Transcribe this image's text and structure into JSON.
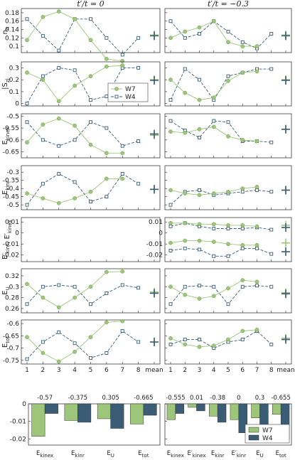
{
  "colors": {
    "W7": "#9dc67a",
    "W4": "#3a5d75",
    "W7_edge": "#6f9a4d",
    "W4_edge": "#2c4a60"
  },
  "chart_data": {
    "type": "line",
    "column_titles": [
      "t′/t = 0",
      "t′/t = −0.3"
    ],
    "x_ticks": [
      "1",
      "2",
      "3",
      "4",
      "5",
      "6",
      "7",
      "8",
      "mean"
    ],
    "legend": [
      "W7",
      "W4"
    ],
    "panels": [
      {
        "ylabel": "n_h",
        "yticks": [
          0.1,
          0.12,
          0.14,
          0.16,
          0.18
        ],
        "ylim": [
          0.085,
          0.19
        ],
        "left": {
          "W7": [
            0.115,
            0.17,
            0.183,
            0.165,
            0.115,
            0.07,
            0.065
          ],
          "W4": [
            0.165,
            0.125,
            0.09,
            0.165,
            0.165,
            0.12,
            0.08,
            0.12
          ],
          "mean": {
            "W7": 0.127,
            "W4": 0.125
          }
        },
        "right": {
          "W7": [
            0.12,
            0.135,
            0.145,
            0.16,
            0.11,
            0.1,
            0.1
          ],
          "W4": [
            0.16,
            0.12,
            0.13,
            0.16,
            0.135,
            0.11,
            0.095,
            0.13
          ],
          "mean": {
            "W7": 0.127,
            "W4": 0.125
          }
        }
      },
      {
        "ylabel": "|S_z|",
        "yticks": [
          0,
          0.1,
          0.2,
          0.3
        ],
        "ylim": [
          -0.02,
          0.35
        ],
        "legend_in_panel": true,
        "left": {
          "W7": [
            0.26,
            0.2,
            0.02,
            0.15,
            0.23,
            0.31,
            0.32
          ],
          "W4": [
            0.0,
            0.23,
            0.3,
            0.28,
            0.03,
            0.06,
            0.3,
            0.3
          ],
          "mean": {
            "W7": 0.2,
            "W4": 0.195
          }
        },
        "right": {
          "W7": [
            0.2,
            0.09,
            0.03,
            0.05,
            0.19,
            0.26,
            0.27
          ],
          "W4": [
            0.03,
            0.29,
            0.2,
            0.03,
            0.23,
            0.26,
            0.29,
            0.29
          ],
          "mean": {
            "W7": 0.2,
            "W4": 0.195
          }
        }
      },
      {
        "ylabel": "E_kinex",
        "yticks": [
          -0.65,
          -0.6,
          -0.55,
          -0.5
        ],
        "ylim": [
          -0.675,
          -0.49
        ],
        "left": {
          "W7": [
            -0.61,
            -0.535,
            -0.51,
            -0.54,
            -0.62,
            -0.655,
            -0.655
          ],
          "W4": [
            -0.525,
            -0.6,
            -0.625,
            -0.6,
            -0.525,
            -0.55,
            -0.625,
            -0.605
          ],
          "mean": {
            "W7": -0.58,
            "W4": -0.575
          }
        },
        "right": {
          "W7": [
            -0.565,
            -0.57,
            -0.555,
            -0.545,
            -0.585,
            -0.6,
            -0.605
          ],
          "W4": [
            -0.52,
            -0.56,
            -0.59,
            -0.52,
            -0.525,
            -0.605,
            -0.605,
            -0.61
          ],
          "mean": {
            "W7": -0.555,
            "W4": -0.555
          }
        }
      },
      {
        "ylabel": "E_kinr",
        "yticks": [
          -0.5,
          -0.45,
          -0.4,
          -0.35,
          -0.3
        ],
        "ylim": [
          -0.53,
          -0.26
        ],
        "left": {
          "W7": [
            -0.43,
            -0.46,
            -0.49,
            -0.46,
            -0.42,
            -0.34,
            -0.34
          ],
          "W4": [
            -0.5,
            -0.37,
            -0.31,
            -0.36,
            -0.48,
            -0.45,
            -0.31,
            -0.37
          ],
          "mean": {
            "W7": -0.405,
            "W4": -0.405
          }
        },
        "right": {
          "W7": [
            -0.41,
            -0.43,
            -0.44,
            -0.43,
            -0.42,
            -0.4,
            -0.39
          ],
          "W4": [
            -0.5,
            -0.42,
            -0.41,
            -0.44,
            -0.43,
            -0.42,
            -0.41,
            -0.42
          ],
          "mean": {
            "W7": -0.41,
            "W4": -0.41
          }
        }
      },
      {
        "ylabel": "E′_kinr, E′_kinex",
        "yticks": [
          -0.02,
          -0.01,
          0,
          0.01
        ],
        "ylim": [
          -0.026,
          0.014
        ],
        "left": null,
        "right": {
          "W7": [
            0.009,
            0.009,
            0.008,
            0.008,
            0.007,
            0.007,
            0.006
          ],
          "W7b": [
            -0.009,
            -0.007,
            -0.007,
            -0.008,
            -0.01,
            -0.011,
            -0.011
          ],
          "W4": [
            0.006,
            0.009,
            0.006,
            0.004,
            0.004,
            0.004,
            0.005,
            0.003
          ],
          "W4b": [
            -0.016,
            -0.014,
            -0.015,
            -0.021,
            -0.021,
            -0.014,
            -0.014,
            -0.019
          ],
          "mean": {
            "W7": 0.007,
            "W4": 0.005,
            "W7b": -0.009,
            "W4b": -0.017
          }
        }
      },
      {
        "ylabel": "E_U",
        "yticks": [
          0.26,
          0.28,
          0.3,
          0.32
        ],
        "ylim": [
          0.252,
          0.333
        ],
        "left": {
          "W7": [
            0.305,
            0.28,
            0.262,
            0.28,
            0.3,
            0.327,
            0.328
          ],
          "W4": [
            0.268,
            0.3,
            0.303,
            0.3,
            0.268,
            0.288,
            0.303,
            0.298
          ],
          "mean": {
            "W7": 0.29,
            "W4": 0.288
          }
        },
        "right": {
          "W7": [
            0.3,
            0.285,
            0.278,
            0.283,
            0.297,
            0.312,
            0.309
          ],
          "W4": [
            0.268,
            0.3,
            0.302,
            0.3,
            0.268,
            0.3,
            0.302,
            0.3
          ],
          "mean": {
            "W7": 0.289,
            "W4": 0.287
          }
        }
      },
      {
        "ylabel": "E_tot",
        "yticks": [
          -0.75,
          -0.7,
          -0.65,
          -0.6
        ],
        "ylim": [
          -0.765,
          -0.585
        ],
        "left": {
          "W7": [
            -0.655,
            -0.72,
            -0.755,
            -0.715,
            -0.655,
            -0.595,
            -0.59
          ],
          "W4": [
            -0.745,
            -0.675,
            -0.635,
            -0.68,
            -0.74,
            -0.72,
            -0.63,
            -0.675
          ],
          "mean": {
            "W7": -0.675,
            "W4": -0.675
          }
        },
        "right": {
          "W7": [
            -0.66,
            -0.685,
            -0.695,
            -0.69,
            -0.665,
            -0.63,
            -0.625
          ],
          "W4": [
            -0.685,
            -0.665,
            -0.665,
            -0.7,
            -0.675,
            -0.665,
            -0.63,
            -0.685
          ],
          "mean": {
            "W7": -0.66,
            "W4": -0.665
          }
        }
      }
    ],
    "bars": {
      "yticks": [
        -0.02,
        -0.01,
        0
      ],
      "ylim": [
        -0.0235,
        0.0
      ],
      "left": {
        "categories": [
          "E_kinex",
          "E_kinr",
          "E_U",
          "E_tot"
        ],
        "top_labels": [
          "-0.57",
          "-0.375",
          "0.305",
          "-0.665"
        ],
        "W7": [
          -0.0185,
          -0.0095,
          -0.0085,
          -0.0115
        ],
        "W4": [
          -0.0055,
          -0.0105,
          -0.014,
          -0.0065
        ]
      },
      "right": {
        "categories": [
          "E_kinex",
          "E′_kinex",
          "E_kinr",
          "E′_kinr",
          "E_U",
          "E_tot"
        ],
        "top_labels": [
          "-0.555",
          "0.01",
          "-0.38",
          "0",
          "0.3",
          "-0.655"
        ],
        "W7": [
          -0.009,
          -0.002,
          -0.007,
          -0.009,
          -0.008,
          -0.006
        ],
        "W4": [
          -0.0055,
          -0.004,
          -0.0105,
          -0.0165,
          -0.0125,
          -0.02
        ]
      },
      "legend_placement": "center-right"
    }
  }
}
